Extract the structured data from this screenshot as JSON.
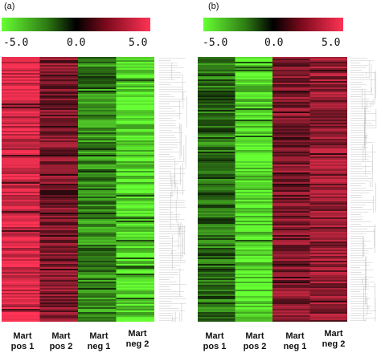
{
  "panels": [
    {
      "label": "(a)",
      "colorbar": {
        "min_label": "-5.0",
        "mid_label": "0.0",
        "max_label": "5.0"
      },
      "columns": [
        {
          "line1": "Mart",
          "line2": "pos 1"
        },
        {
          "line1": "Mart",
          "line2": "pos 2"
        },
        {
          "line1": "Mart",
          "line2": "neg 1"
        },
        {
          "line1": "Mart",
          "line2": "neg 2"
        }
      ]
    },
    {
      "label": "(b)",
      "colorbar": {
        "min_label": "-5.0",
        "mid_label": "0.0",
        "max_label": "5.0"
      },
      "columns": [
        {
          "line1": "Mart",
          "line2": "pos 1"
        },
        {
          "line1": "Mart",
          "line2": "pos 2"
        },
        {
          "line1": "Mart",
          "line2": "neg 1"
        },
        {
          "line1": "Mart",
          "line2": "neg 2"
        }
      ]
    }
  ],
  "chart_data": [
    {
      "type": "heatmap",
      "title": "(a)",
      "colorscale": {
        "min": -5.0,
        "mid": 0.0,
        "max": 5.0,
        "low_color": "#66ff33",
        "mid_color": "#000000",
        "high_color": "#ff3355"
      },
      "columns": [
        "Mart pos 1",
        "Mart pos 2",
        "Mart neg 1",
        "Mart neg 2"
      ],
      "column_mean_values": [
        4.2,
        2.4,
        -2.6,
        -4.3
      ],
      "row_dendrogram": true
    },
    {
      "type": "heatmap",
      "title": "(b)",
      "colorscale": {
        "min": -5.0,
        "mid": 0.0,
        "max": 5.0,
        "low_color": "#66ff33",
        "mid_color": "#000000",
        "high_color": "#ff3355"
      },
      "columns": [
        "Mart pos 1",
        "Mart pos 2",
        "Mart neg 1",
        "Mart neg 2"
      ],
      "column_mean_values": [
        -2.2,
        -4.3,
        2.5,
        2.8
      ],
      "row_dendrogram": true
    }
  ]
}
